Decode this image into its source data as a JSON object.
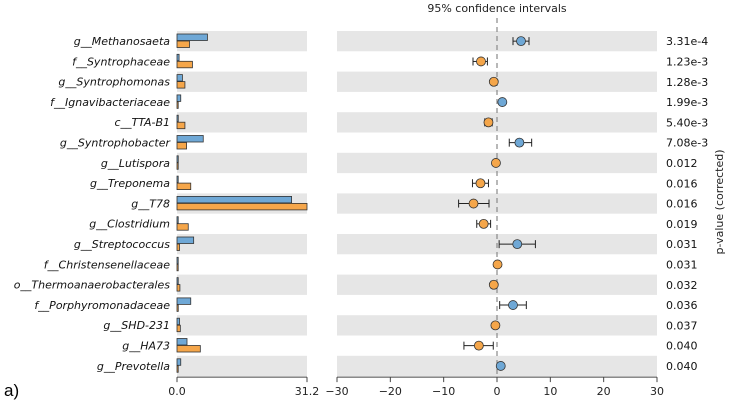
{
  "panel_label": "a)",
  "chart_data": [
    {
      "type": "bar",
      "categories": [
        "g__Methanosaeta",
        "f__Syntrophaceae",
        "g__Syntrophomonas",
        "f__Ignavibacteriaceae",
        "c__TTA-B1",
        "g__Syntrophobacter",
        "g__Lutispora",
        "g__Treponema",
        "g__T78",
        "g__Clostridium",
        "g__Streptococcus",
        "f__Christensenellaceae",
        "o__Thermoanaerobacterales",
        "f__Porphyromonadaceae",
        "g__SHD-231",
        "g__HA73",
        "g__Prevotella"
      ],
      "series": [
        {
          "color": "#6fa8d6",
          "values": [
            7.3,
            0.5,
            1.3,
            0.9,
            0.3,
            6.3,
            0.3,
            0.2,
            27.5,
            0.1,
            4.0,
            0.2,
            0.2,
            3.3,
            0.6,
            2.4,
            0.9
          ]
        },
        {
          "color": "#f5a64a",
          "values": [
            3.0,
            3.7,
            1.9,
            0.2,
            1.9,
            2.3,
            0.1,
            3.3,
            31.2,
            2.7,
            0.6,
            0.1,
            0.7,
            0.3,
            0.8,
            5.6,
            0.1
          ]
        }
      ],
      "xlim": [
        0,
        31.2
      ],
      "xticks": [
        "0.0",
        "31.2"
      ]
    },
    {
      "type": "scatter",
      "title": "95% confidence intervals",
      "xlim": [
        -30,
        30
      ],
      "xticks": [
        "−30",
        "−20",
        "−10",
        "0",
        "10",
        "20",
        "30"
      ],
      "points": [
        {
          "x": 4.5,
          "lo": 3.0,
          "hi": 6.0,
          "color": "#6fa8d6"
        },
        {
          "x": -3.0,
          "lo": -4.5,
          "hi": -1.8,
          "color": "#f5a64a"
        },
        {
          "x": -0.6,
          "lo": -1.0,
          "hi": -0.2,
          "color": "#f5a64a"
        },
        {
          "x": 1.0,
          "lo": 0.6,
          "hi": 1.4,
          "color": "#6fa8d6"
        },
        {
          "x": -1.6,
          "lo": -2.3,
          "hi": -0.9,
          "color": "#f5a64a"
        },
        {
          "x": 4.2,
          "lo": 2.3,
          "hi": 6.5,
          "color": "#6fa8d6"
        },
        {
          "x": -0.2,
          "lo": -0.4,
          "hi": 0.0,
          "color": "#f5a64a"
        },
        {
          "x": -3.1,
          "lo": -4.6,
          "hi": -1.6,
          "color": "#f5a64a"
        },
        {
          "x": -4.4,
          "lo": -7.2,
          "hi": -1.5,
          "color": "#f5a64a"
        },
        {
          "x": -2.5,
          "lo": -3.8,
          "hi": -1.2,
          "color": "#f5a64a"
        },
        {
          "x": 3.8,
          "lo": 0.4,
          "hi": 7.2,
          "color": "#6fa8d6"
        },
        {
          "x": 0.1,
          "lo": -0.1,
          "hi": 0.3,
          "color": "#f5a64a"
        },
        {
          "x": -0.6,
          "lo": -1.1,
          "hi": -0.1,
          "color": "#f5a64a"
        },
        {
          "x": 3.0,
          "lo": 0.5,
          "hi": 5.5,
          "color": "#6fa8d6"
        },
        {
          "x": -0.3,
          "lo": -0.6,
          "hi": 0.0,
          "color": "#f5a64a"
        },
        {
          "x": -3.4,
          "lo": -6.2,
          "hi": -0.7,
          "color": "#f5a64a"
        },
        {
          "x": 0.7,
          "lo": 0.3,
          "hi": 1.1,
          "color": "#6fa8d6"
        }
      ],
      "p_values": [
        "3.31e-4",
        "1.23e-3",
        "1.28e-3",
        "1.99e-3",
        "5.40e-3",
        "7.08e-3",
        "0.012",
        "0.016",
        "0.016",
        "0.019",
        "0.031",
        "0.031",
        "0.032",
        "0.036",
        "0.037",
        "0.040",
        "0.040"
      ],
      "ylabel_right": "p-value (corrected)"
    }
  ]
}
